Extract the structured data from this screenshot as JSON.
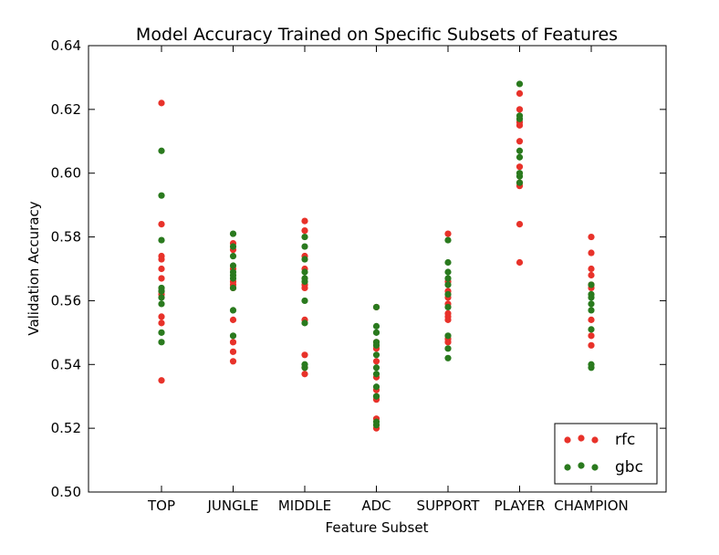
{
  "chart_data": {
    "type": "scatter",
    "title": "Model Accuracy Trained on Specific Subsets of Features",
    "xlabel": "Feature Subset",
    "ylabel": "Validation Accuracy",
    "categories": [
      "TOP",
      "JUNGLE",
      "MIDDLE",
      "ADC",
      "SUPPORT",
      "PLAYER",
      "CHAMPION"
    ],
    "ylim": [
      0.5,
      0.64
    ],
    "yticks": [
      "0.50",
      "0.52",
      "0.54",
      "0.56",
      "0.58",
      "0.60",
      "0.62",
      "0.64"
    ],
    "grid": false,
    "legend_position": "bottom-right",
    "series": [
      {
        "name": "rfc",
        "color": "#e8322a",
        "values": [
          [
            0.622,
            0.584,
            0.574,
            0.573,
            0.57,
            0.567,
            0.563,
            0.562,
            0.555,
            0.553,
            0.535
          ],
          [
            0.578,
            0.576,
            0.57,
            0.566,
            0.565,
            0.564,
            0.554,
            0.547,
            0.544,
            0.541
          ],
          [
            0.585,
            0.582,
            0.574,
            0.57,
            0.565,
            0.564,
            0.554,
            0.543,
            0.539,
            0.537
          ],
          [
            0.558,
            0.547,
            0.545,
            0.541,
            0.536,
            0.532,
            0.53,
            0.529,
            0.523,
            0.52
          ],
          [
            0.581,
            0.566,
            0.563,
            0.561,
            0.559,
            0.556,
            0.555,
            0.554,
            0.548,
            0.547
          ],
          [
            0.625,
            0.62,
            0.616,
            0.615,
            0.61,
            0.602,
            0.597,
            0.596,
            0.584,
            0.572
          ],
          [
            0.58,
            0.575,
            0.57,
            0.568,
            0.565,
            0.564,
            0.554,
            0.549,
            0.546
          ]
        ]
      },
      {
        "name": "gbc",
        "color": "#2a7a1e",
        "values": [
          [
            0.607,
            0.593,
            0.579,
            0.564,
            0.563,
            0.561,
            0.559,
            0.55,
            0.547
          ],
          [
            0.581,
            0.577,
            0.574,
            0.571,
            0.569,
            0.568,
            0.567,
            0.564,
            0.557,
            0.549
          ],
          [
            0.58,
            0.577,
            0.573,
            0.569,
            0.567,
            0.566,
            0.56,
            0.553,
            0.54,
            0.539
          ],
          [
            0.558,
            0.552,
            0.55,
            0.547,
            0.546,
            0.543,
            0.539,
            0.537,
            0.533,
            0.53,
            0.522,
            0.521
          ],
          [
            0.579,
            0.572,
            0.569,
            0.567,
            0.565,
            0.562,
            0.558,
            0.549,
            0.545,
            0.542
          ],
          [
            0.628,
            0.618,
            0.617,
            0.607,
            0.605,
            0.6,
            0.599,
            0.597
          ],
          [
            0.565,
            0.562,
            0.561,
            0.559,
            0.557,
            0.551,
            0.54,
            0.539
          ]
        ]
      }
    ]
  }
}
